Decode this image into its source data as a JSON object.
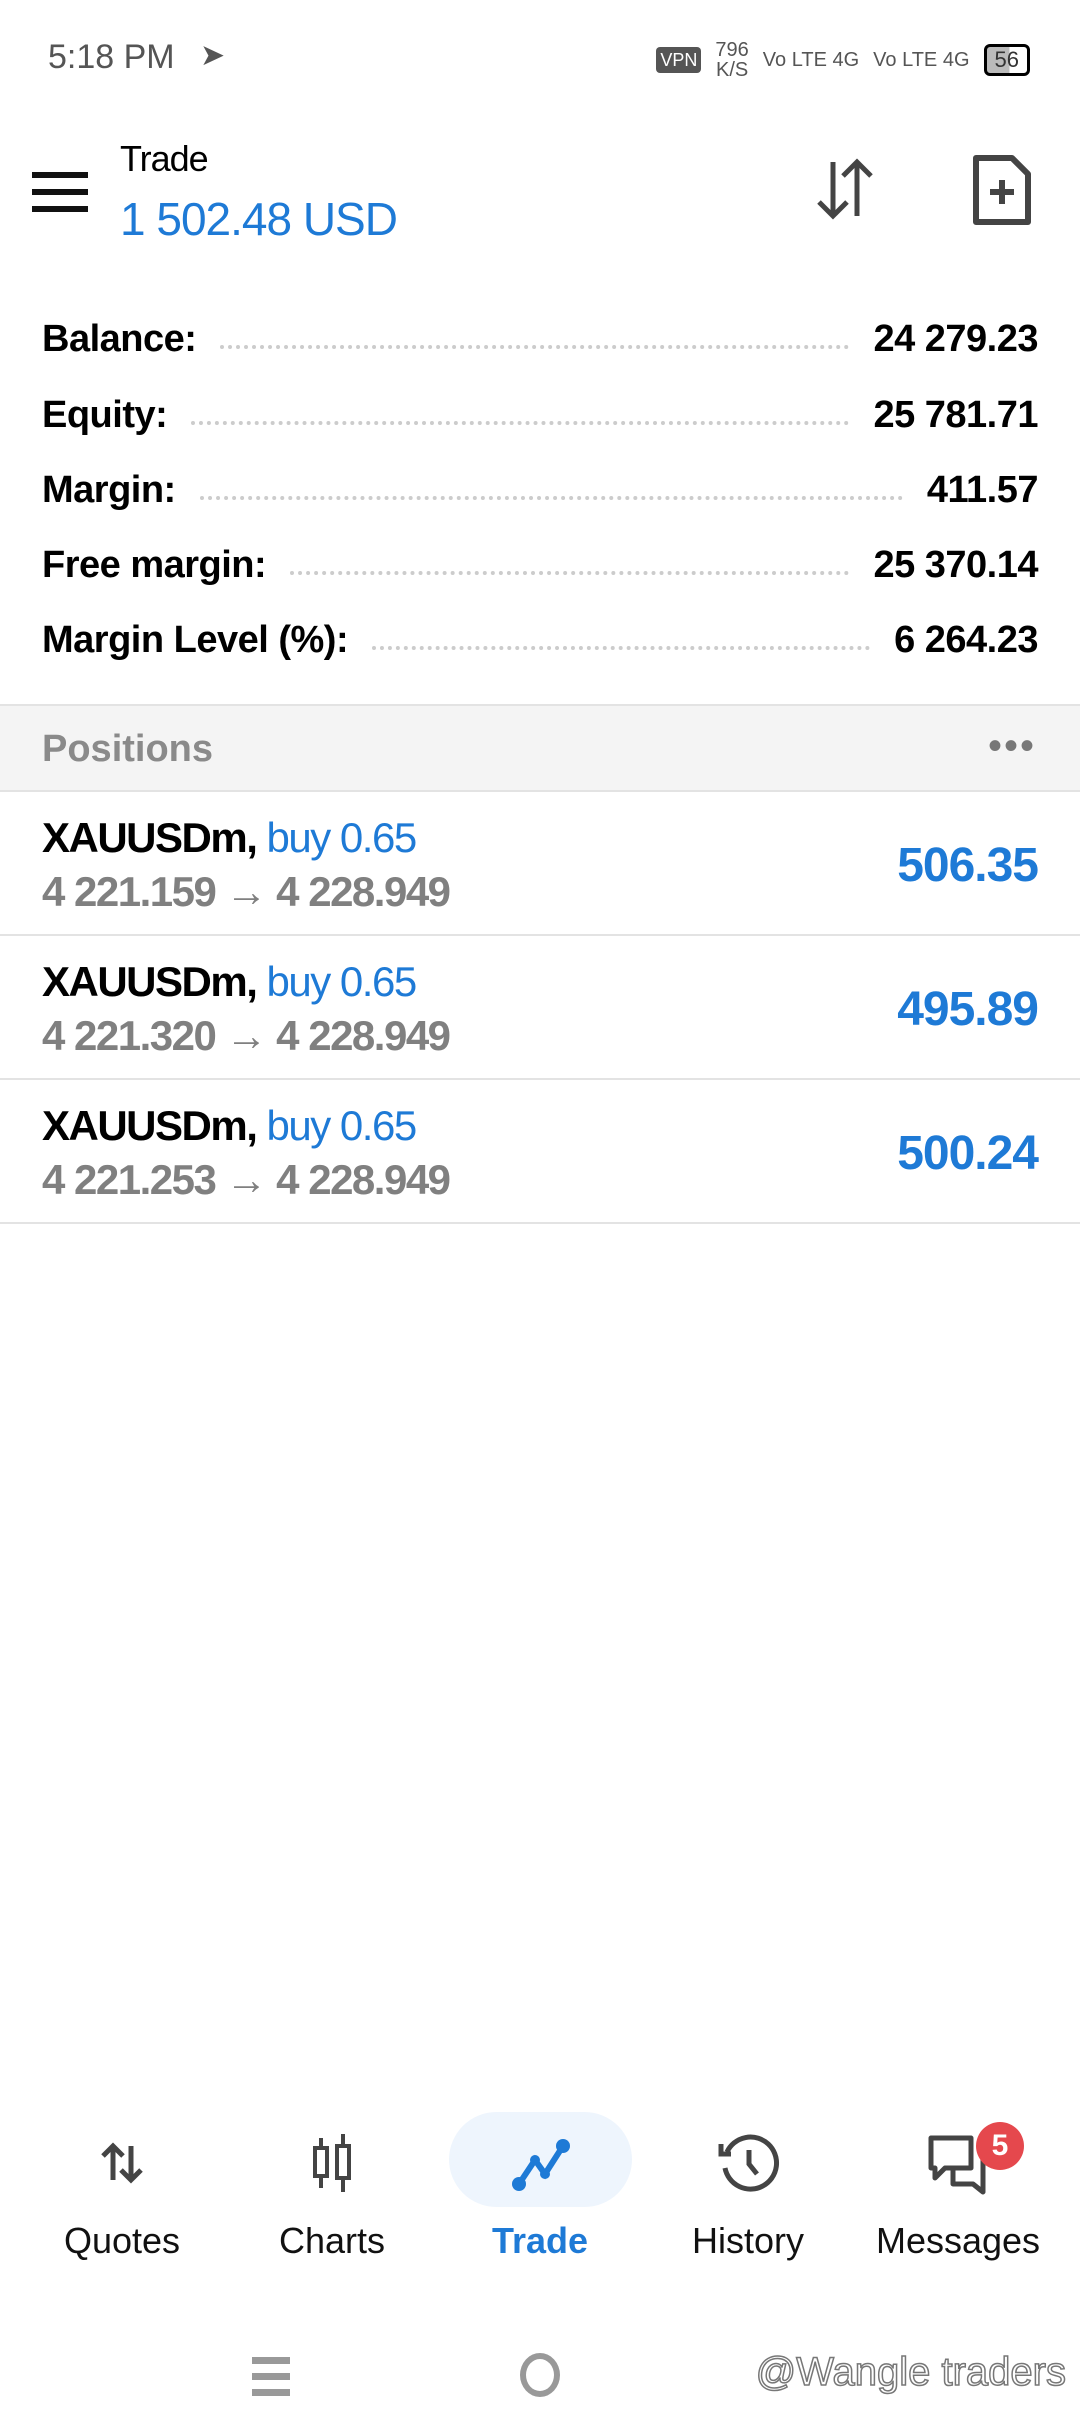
{
  "status_bar": {
    "time": "5:18 PM",
    "vpn": "VPN",
    "net_speed": "796",
    "net_unit": "K/S",
    "sim1": "Vo LTE 4G",
    "sim2": "Vo LTE 4G",
    "battery": "56"
  },
  "header": {
    "title": "Trade",
    "amount": "1 502.48 USD"
  },
  "summary": [
    {
      "label": "Balance:",
      "value": "24 279.23"
    },
    {
      "label": "Equity:",
      "value": "25 781.71"
    },
    {
      "label": "Margin:",
      "value": "411.57"
    },
    {
      "label": "Free margin:",
      "value": "25 370.14"
    },
    {
      "label": "Margin Level (%):",
      "value": "6 264.23"
    }
  ],
  "positions": {
    "title": "Positions",
    "more": "•••",
    "items": [
      {
        "symbol": "XAUUSDm,",
        "side": "buy 0.65",
        "prices": "4 221.159 → 4 228.949",
        "profit": "506.35"
      },
      {
        "symbol": "XAUUSDm,",
        "side": "buy 0.65",
        "prices": "4 221.320 → 4 228.949",
        "profit": "495.89"
      },
      {
        "symbol": "XAUUSDm,",
        "side": "buy 0.65",
        "prices": "4 221.253 → 4 228.949",
        "profit": "500.24"
      }
    ]
  },
  "nav": {
    "quotes": "Quotes",
    "charts": "Charts",
    "trade": "Trade",
    "history": "History",
    "messages": "Messages",
    "messages_badge": "5"
  },
  "watermark": "@Wangle traders",
  "colors": {
    "accent": "#1e7ad6",
    "badge": "#e5484d"
  }
}
